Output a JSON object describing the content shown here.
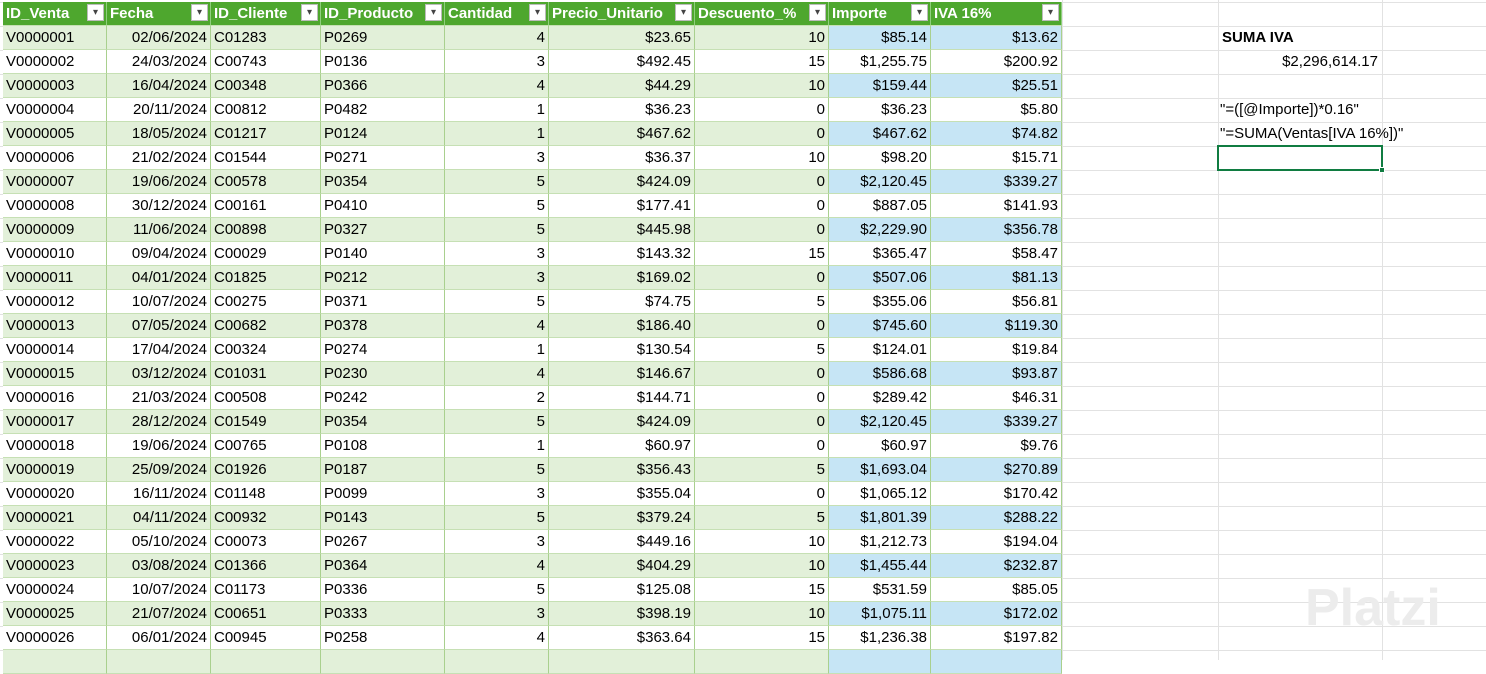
{
  "table": {
    "headers": [
      "ID_Venta",
      "Fecha",
      "ID_Cliente",
      "ID_Producto",
      "Cantidad",
      "Precio_Unitario",
      "Descuento_%",
      "Importe",
      "IVA 16%"
    ],
    "rows": [
      [
        "V0000001",
        "02/06/2024",
        "C01283",
        "P0269",
        "4",
        "$23.65",
        "10",
        "$85.14",
        "$13.62"
      ],
      [
        "V0000002",
        "24/03/2024",
        "C00743",
        "P0136",
        "3",
        "$492.45",
        "15",
        "$1,255.75",
        "$200.92"
      ],
      [
        "V0000003",
        "16/04/2024",
        "C00348",
        "P0366",
        "4",
        "$44.29",
        "10",
        "$159.44",
        "$25.51"
      ],
      [
        "V0000004",
        "20/11/2024",
        "C00812",
        "P0482",
        "1",
        "$36.23",
        "0",
        "$36.23",
        "$5.80"
      ],
      [
        "V0000005",
        "18/05/2024",
        "C01217",
        "P0124",
        "1",
        "$467.62",
        "0",
        "$467.62",
        "$74.82"
      ],
      [
        "V0000006",
        "21/02/2024",
        "C01544",
        "P0271",
        "3",
        "$36.37",
        "10",
        "$98.20",
        "$15.71"
      ],
      [
        "V0000007",
        "19/06/2024",
        "C00578",
        "P0354",
        "5",
        "$424.09",
        "0",
        "$2,120.45",
        "$339.27"
      ],
      [
        "V0000008",
        "30/12/2024",
        "C00161",
        "P0410",
        "5",
        "$177.41",
        "0",
        "$887.05",
        "$141.93"
      ],
      [
        "V0000009",
        "11/06/2024",
        "C00898",
        "P0327",
        "5",
        "$445.98",
        "0",
        "$2,229.90",
        "$356.78"
      ],
      [
        "V0000010",
        "09/04/2024",
        "C00029",
        "P0140",
        "3",
        "$143.32",
        "15",
        "$365.47",
        "$58.47"
      ],
      [
        "V0000011",
        "04/01/2024",
        "C01825",
        "P0212",
        "3",
        "$169.02",
        "0",
        "$507.06",
        "$81.13"
      ],
      [
        "V0000012",
        "10/07/2024",
        "C00275",
        "P0371",
        "5",
        "$74.75",
        "5",
        "$355.06",
        "$56.81"
      ],
      [
        "V0000013",
        "07/05/2024",
        "C00682",
        "P0378",
        "4",
        "$186.40",
        "0",
        "$745.60",
        "$119.30"
      ],
      [
        "V0000014",
        "17/04/2024",
        "C00324",
        "P0274",
        "1",
        "$130.54",
        "5",
        "$124.01",
        "$19.84"
      ],
      [
        "V0000015",
        "03/12/2024",
        "C01031",
        "P0230",
        "4",
        "$146.67",
        "0",
        "$586.68",
        "$93.87"
      ],
      [
        "V0000016",
        "21/03/2024",
        "C00508",
        "P0242",
        "2",
        "$144.71",
        "0",
        "$289.42",
        "$46.31"
      ],
      [
        "V0000017",
        "28/12/2024",
        "C01549",
        "P0354",
        "5",
        "$424.09",
        "0",
        "$2,120.45",
        "$339.27"
      ],
      [
        "V0000018",
        "19/06/2024",
        "C00765",
        "P0108",
        "1",
        "$60.97",
        "0",
        "$60.97",
        "$9.76"
      ],
      [
        "V0000019",
        "25/09/2024",
        "C01926",
        "P0187",
        "5",
        "$356.43",
        "5",
        "$1,693.04",
        "$270.89"
      ],
      [
        "V0000020",
        "16/11/2024",
        "C01148",
        "P0099",
        "3",
        "$355.04",
        "0",
        "$1,065.12",
        "$170.42"
      ],
      [
        "V0000021",
        "04/11/2024",
        "C00932",
        "P0143",
        "5",
        "$379.24",
        "5",
        "$1,801.39",
        "$288.22"
      ],
      [
        "V0000022",
        "05/10/2024",
        "C00073",
        "P0267",
        "3",
        "$449.16",
        "10",
        "$1,212.73",
        "$194.04"
      ],
      [
        "V0000023",
        "03/08/2024",
        "C01366",
        "P0364",
        "4",
        "$404.29",
        "10",
        "$1,455.44",
        "$232.87"
      ],
      [
        "V0000024",
        "10/07/2024",
        "C01173",
        "P0336",
        "5",
        "$125.08",
        "15",
        "$531.59",
        "$85.05"
      ],
      [
        "V0000025",
        "21/07/2024",
        "C00651",
        "P0333",
        "3",
        "$398.19",
        "10",
        "$1,075.11",
        "$172.02"
      ],
      [
        "V0000026",
        "06/01/2024",
        "C00945",
        "P0258",
        "4",
        "$363.64",
        "15",
        "$1,236.38",
        "$197.82"
      ]
    ]
  },
  "side": {
    "suma_label": "SUMA IVA",
    "suma_value": "$2,296,614.17",
    "formula_iva": "\"=([@Importe])*0.16\"",
    "formula_suma": "\"=SUMA(Ventas[IVA 16%])\""
  },
  "watermark": "Platzi"
}
